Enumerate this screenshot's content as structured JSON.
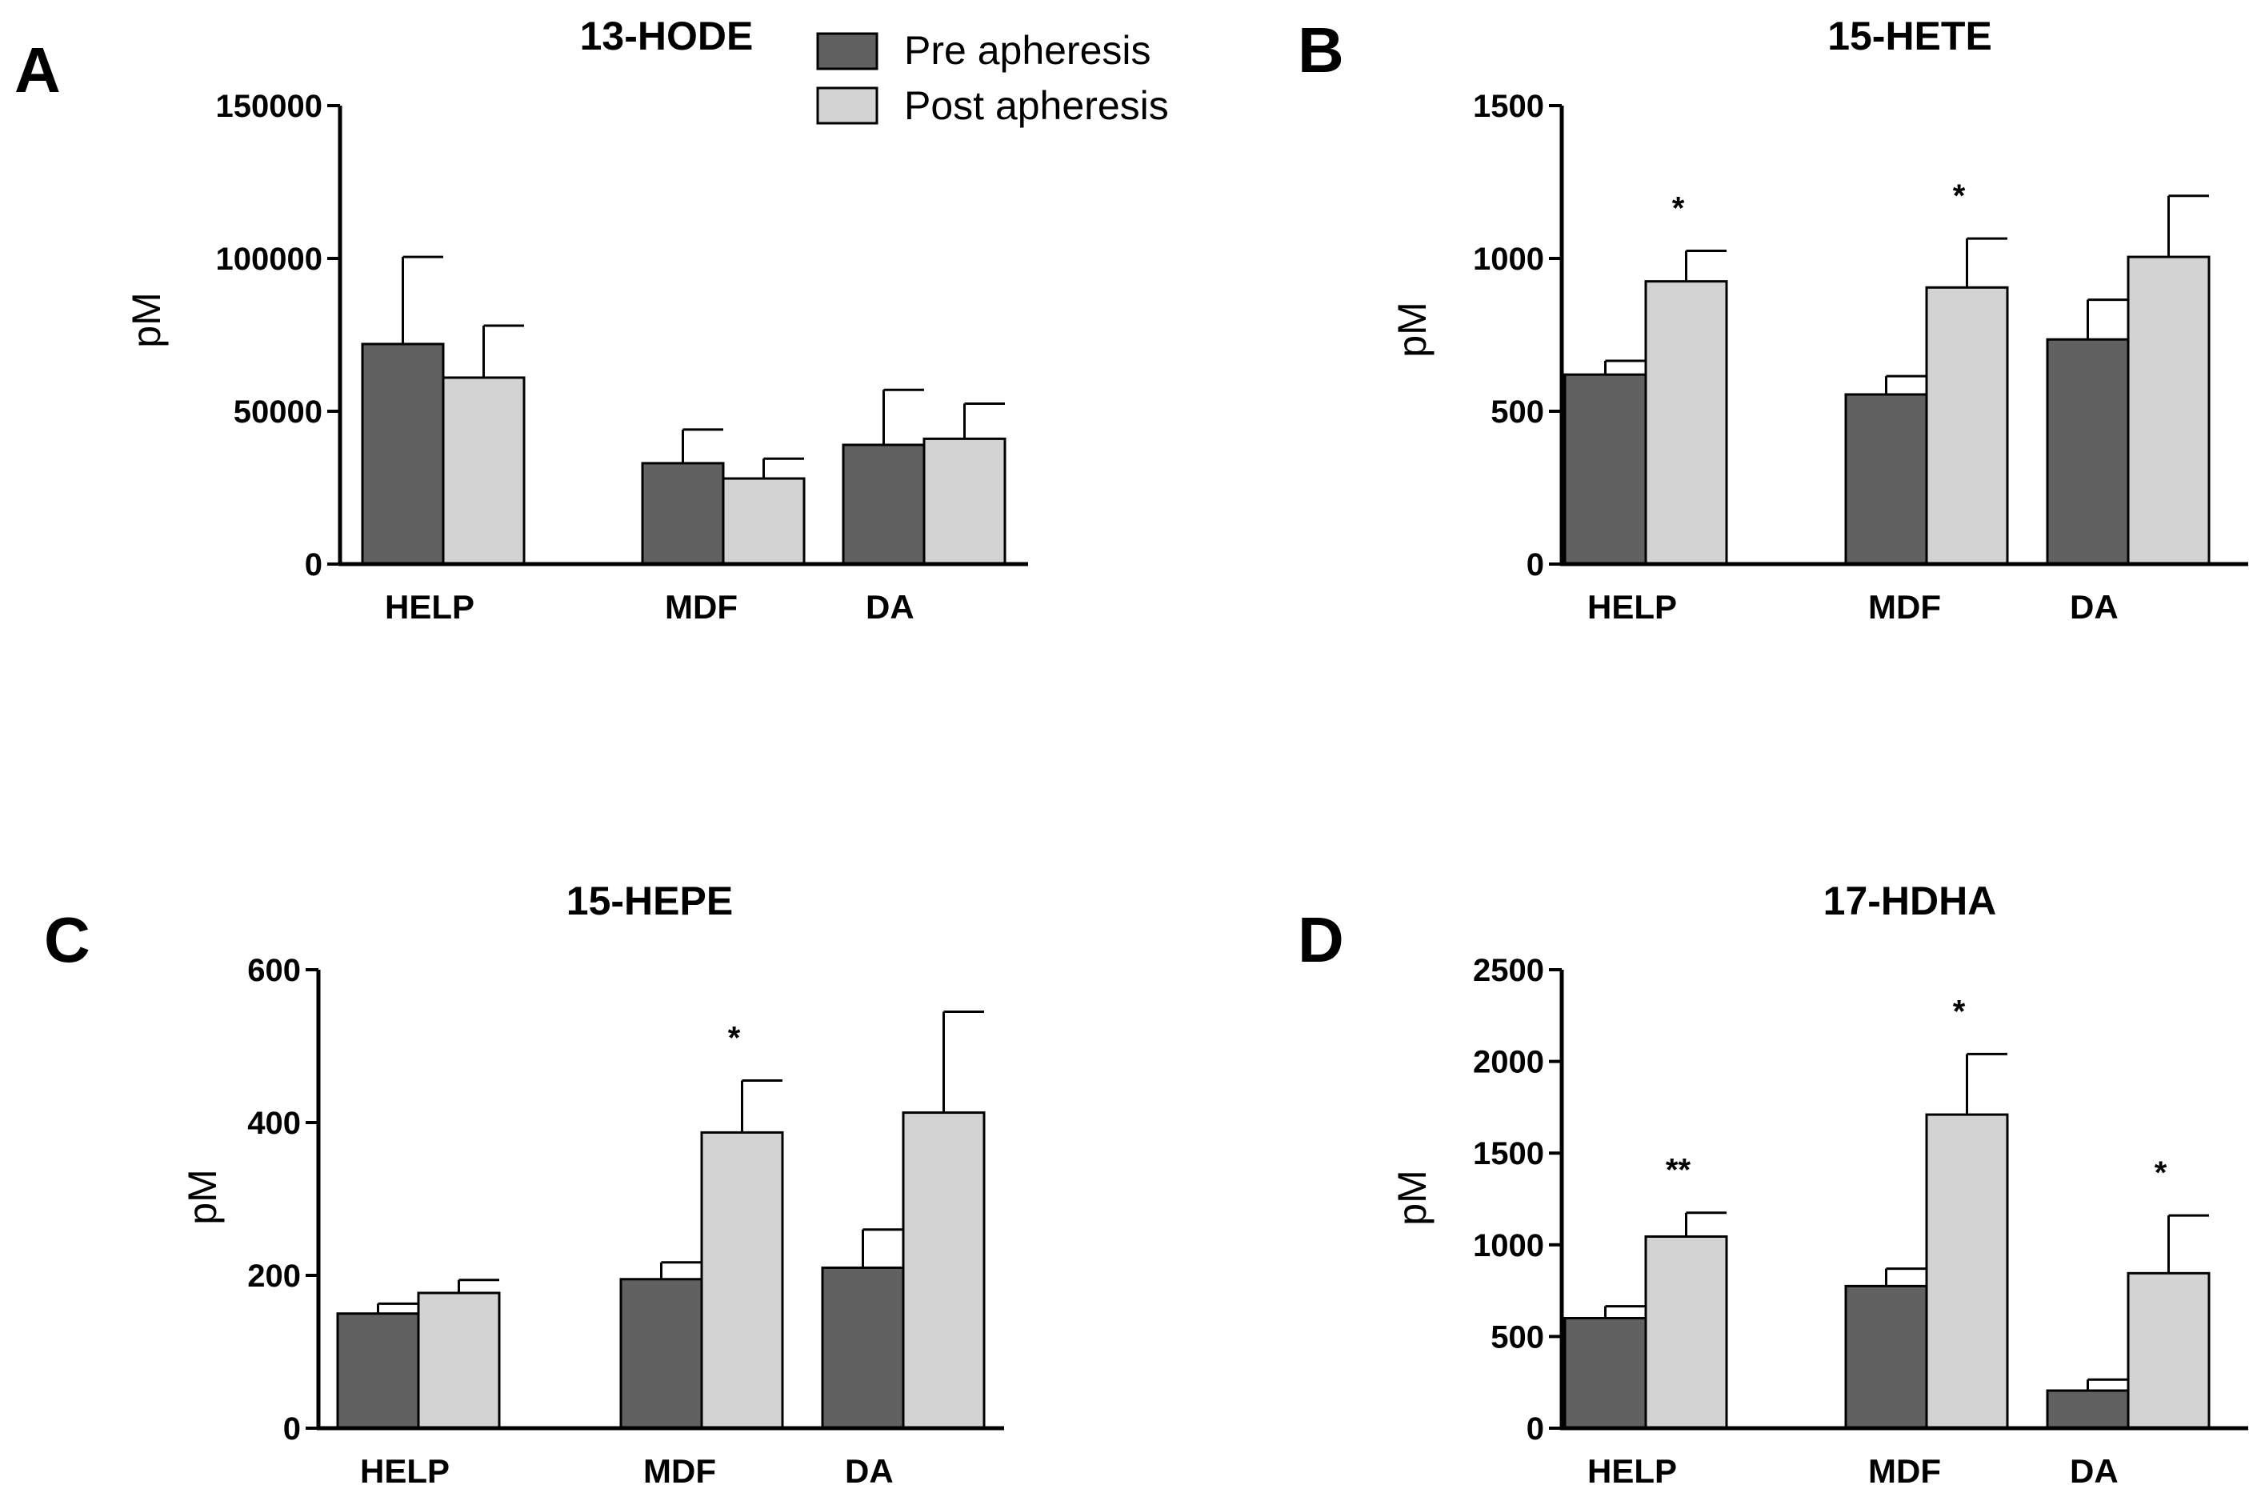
{
  "legend": {
    "pre_label": "Pre apheresis",
    "post_label": "Post apheresis",
    "pre_color": "#616161",
    "post_color": "#d3d3d3"
  },
  "chart_data": [
    {
      "panel": "A",
      "type": "bar",
      "title": "13-HODE",
      "ylabel": "pM",
      "xlabel": "",
      "ylim": [
        0,
        150000
      ],
      "yticks": [
        "0",
        "50000",
        "100000",
        "150000"
      ],
      "categories": [
        "HELP",
        "MDF",
        "DA"
      ],
      "series": [
        {
          "name": "Pre apheresis",
          "values": [
            72000,
            33000,
            39000
          ],
          "errors": [
            28500,
            11000,
            18000
          ]
        },
        {
          "name": "Post apheresis",
          "values": [
            61000,
            28000,
            41000
          ],
          "errors": [
            17000,
            6500,
            11500
          ]
        }
      ],
      "significance": [
        {
          "category": "HELP",
          "marks": ""
        },
        {
          "category": "MDF",
          "marks": ""
        },
        {
          "category": "DA",
          "marks": ""
        }
      ]
    },
    {
      "panel": "B",
      "type": "bar",
      "title": "15-HETE",
      "ylabel": "pM",
      "xlabel": "",
      "ylim": [
        0,
        1500
      ],
      "yticks": [
        "0",
        "500",
        "1000",
        "1500"
      ],
      "categories": [
        "HELP",
        "MDF",
        "DA"
      ],
      "series": [
        {
          "name": "Pre apheresis",
          "values": [
            620,
            555,
            735
          ],
          "errors": [
            45,
            60,
            130
          ]
        },
        {
          "name": "Post apheresis",
          "values": [
            925,
            905,
            1005
          ],
          "errors": [
            100,
            160,
            200
          ]
        }
      ],
      "significance": [
        {
          "category": "HELP",
          "marks": "*"
        },
        {
          "category": "MDF",
          "marks": "*"
        },
        {
          "category": "DA",
          "marks": ""
        }
      ]
    },
    {
      "panel": "C",
      "type": "bar",
      "title": "15-HEPE",
      "ylabel": "pM",
      "xlabel": "",
      "ylim": [
        0,
        600
      ],
      "yticks": [
        "0",
        "200",
        "400",
        "600"
      ],
      "categories": [
        "HELP",
        "MDF",
        "DA"
      ],
      "series": [
        {
          "name": "Pre apheresis",
          "values": [
            150,
            195,
            210
          ],
          "errors": [
            13,
            22,
            50
          ]
        },
        {
          "name": "Post apheresis",
          "values": [
            177,
            387,
            413
          ],
          "errors": [
            17,
            68,
            132
          ]
        }
      ],
      "significance": [
        {
          "category": "HELP",
          "marks": ""
        },
        {
          "category": "MDF",
          "marks": "*"
        },
        {
          "category": "DA",
          "marks": ""
        }
      ]
    },
    {
      "panel": "D",
      "type": "bar",
      "title": "17-HDHA",
      "ylabel": "pM",
      "xlabel": "",
      "ylim": [
        0,
        2500
      ],
      "yticks": [
        "0",
        "500",
        "1000",
        "1500",
        "2000",
        "2500"
      ],
      "categories": [
        "HELP",
        "MDF",
        "DA"
      ],
      "series": [
        {
          "name": "Pre apheresis",
          "values": [
            600,
            775,
            205
          ],
          "errors": [
            65,
            95,
            60
          ]
        },
        {
          "name": "Post apheresis",
          "values": [
            1045,
            1710,
            845
          ],
          "errors": [
            130,
            330,
            315
          ]
        }
      ],
      "significance": [
        {
          "category": "HELP",
          "marks": "**"
        },
        {
          "category": "MDF",
          "marks": "*"
        },
        {
          "category": "DA",
          "marks": "*"
        }
      ]
    }
  ]
}
